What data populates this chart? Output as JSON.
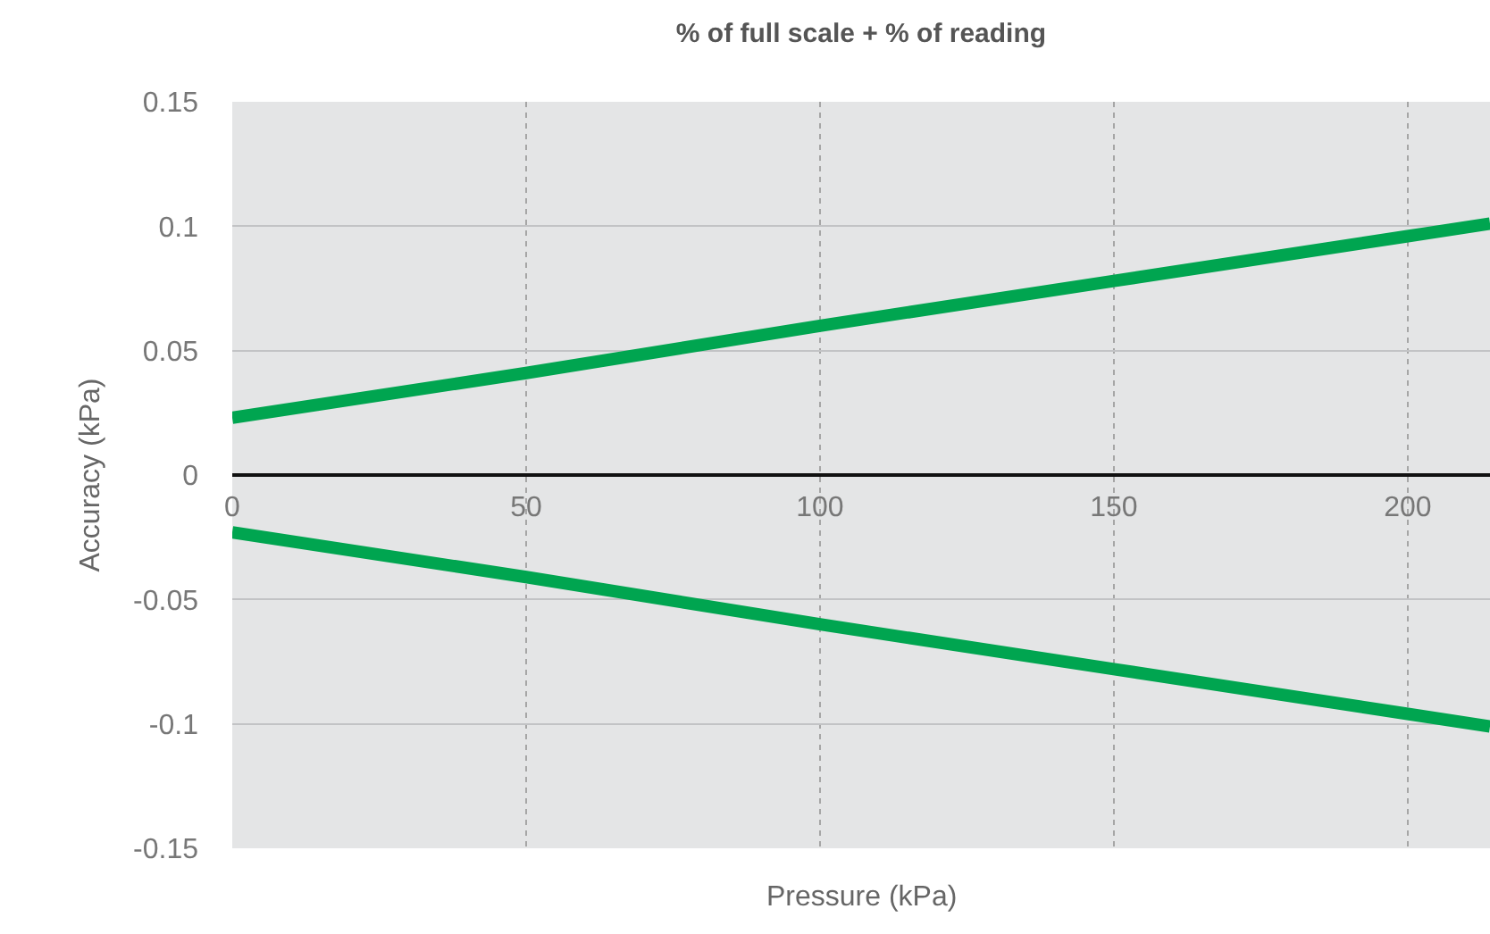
{
  "chart_data": {
    "type": "line",
    "title": "% of full scale + % of reading",
    "xlabel": "Pressure (kPa)",
    "ylabel": "Accuracy (kPa)",
    "x": [
      0,
      50,
      100,
      150,
      200,
      214
    ],
    "series": [
      {
        "color": "#00a550",
        "values": [
          0.023,
          0.041,
          0.06,
          0.078,
          0.096,
          0.101
        ]
      },
      {
        "color": "#00a550",
        "values": [
          -0.023,
          -0.041,
          -0.06,
          -0.078,
          -0.096,
          -0.101
        ]
      }
    ],
    "xlim": [
      0,
      214
    ],
    "xticks": [
      0,
      50,
      100,
      150,
      200
    ],
    "ylim": [
      -0.15,
      0.15
    ],
    "yticks": [
      {
        "value": -0.15,
        "label": "-0.15"
      },
      {
        "value": -0.1,
        "label": "-0.1"
      },
      {
        "value": -0.05,
        "label": "-0.05"
      },
      0,
      {
        "value": 0.05,
        "label": "0.05"
      },
      {
        "value": 0.1,
        "label": "0.1"
      },
      {
        "value": 0.15,
        "label": "0.15"
      }
    ],
    "grid": true,
    "marker": "none",
    "line_style": "solid"
  }
}
